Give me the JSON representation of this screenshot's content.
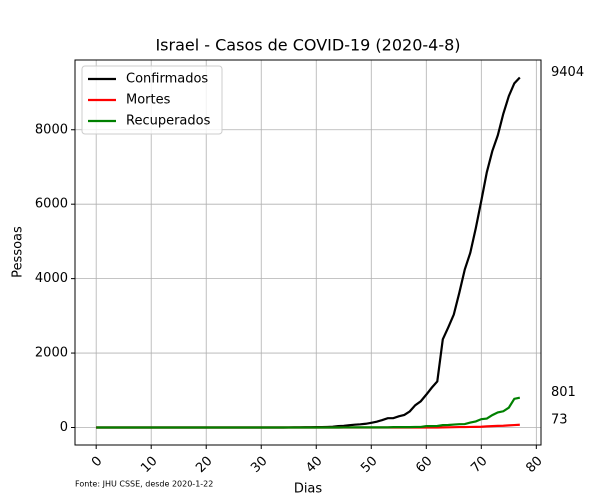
{
  "chart_data": {
    "type": "line",
    "title": "Israel - Casos de COVID-19 (2020-4-8)",
    "x_label": "Dias",
    "y_label": "Pessoas",
    "footnote": "Fonte: JHU CSSE, desde 2020-1-22",
    "x": [
      0,
      1,
      2,
      3,
      4,
      5,
      6,
      7,
      8,
      9,
      10,
      11,
      12,
      13,
      14,
      15,
      16,
      17,
      18,
      19,
      20,
      21,
      22,
      23,
      24,
      25,
      26,
      27,
      28,
      29,
      30,
      31,
      32,
      33,
      34,
      35,
      36,
      37,
      38,
      39,
      40,
      41,
      42,
      43,
      44,
      45,
      46,
      47,
      48,
      49,
      50,
      51,
      52,
      53,
      54,
      55,
      56,
      57,
      58,
      59,
      60,
      61,
      62,
      63,
      64,
      65,
      66,
      67,
      68,
      69,
      70,
      71,
      72,
      73,
      74,
      75,
      76,
      77
    ],
    "series": [
      {
        "name": "Confirmados",
        "color": "#000000",
        "values": [
          0,
          0,
          0,
          0,
          0,
          0,
          0,
          0,
          0,
          0,
          0,
          0,
          0,
          0,
          0,
          0,
          0,
          0,
          0,
          0,
          0,
          0,
          0,
          0,
          0,
          0,
          0,
          0,
          0,
          0,
          1,
          1,
          1,
          1,
          1,
          2,
          3,
          4,
          7,
          7,
          10,
          12,
          15,
          20,
          37,
          43,
          61,
          75,
          85,
          100,
          126,
          155,
          200,
          250,
          250,
          300,
          337,
          433,
          600,
          705,
          883,
          1071,
          1238,
          2369,
          2693,
          3035,
          3619,
          4247,
          4695,
          5358,
          6092,
          6857,
          7428,
          7851,
          8430,
          8904,
          9248,
          9404
        ]
      },
      {
        "name": "Mortes",
        "color": "#ff0000",
        "values": [
          0,
          0,
          0,
          0,
          0,
          0,
          0,
          0,
          0,
          0,
          0,
          0,
          0,
          0,
          0,
          0,
          0,
          0,
          0,
          0,
          0,
          0,
          0,
          0,
          0,
          0,
          0,
          0,
          0,
          0,
          0,
          0,
          0,
          0,
          0,
          0,
          0,
          0,
          0,
          0,
          0,
          0,
          0,
          0,
          0,
          0,
          0,
          0,
          0,
          0,
          0,
          0,
          0,
          0,
          0,
          0,
          0,
          0,
          1,
          1,
          1,
          1,
          1,
          3,
          5,
          8,
          12,
          12,
          15,
          16,
          20,
          31,
          36,
          44,
          48,
          57,
          65,
          73
        ]
      },
      {
        "name": "Recuperados",
        "color": "#008000",
        "values": [
          0,
          0,
          0,
          0,
          0,
          0,
          0,
          0,
          0,
          0,
          0,
          0,
          0,
          0,
          0,
          0,
          0,
          0,
          0,
          0,
          0,
          0,
          0,
          0,
          0,
          0,
          0,
          0,
          0,
          0,
          0,
          0,
          0,
          0,
          0,
          0,
          1,
          1,
          1,
          1,
          1,
          1,
          1,
          1,
          1,
          2,
          2,
          4,
          4,
          4,
          4,
          4,
          4,
          4,
          11,
          11,
          11,
          11,
          15,
          15,
          37,
          37,
          41,
          64,
          68,
          79,
          89,
          92,
          132,
          163,
          224,
          241,
          333,
          405,
          436,
          533,
          770,
          801
        ]
      }
    ],
    "annotations": [
      9404,
      801,
      73
    ],
    "xlim": [
      -3.85,
      80.85
    ],
    "xticks": [
      0,
      10,
      20,
      30,
      40,
      50,
      60,
      70,
      80
    ],
    "ylim": [
      -470.2,
      9874.2
    ],
    "yticks": [
      0,
      2000,
      4000,
      6000,
      8000
    ],
    "grid": true,
    "legend": "upper left"
  }
}
